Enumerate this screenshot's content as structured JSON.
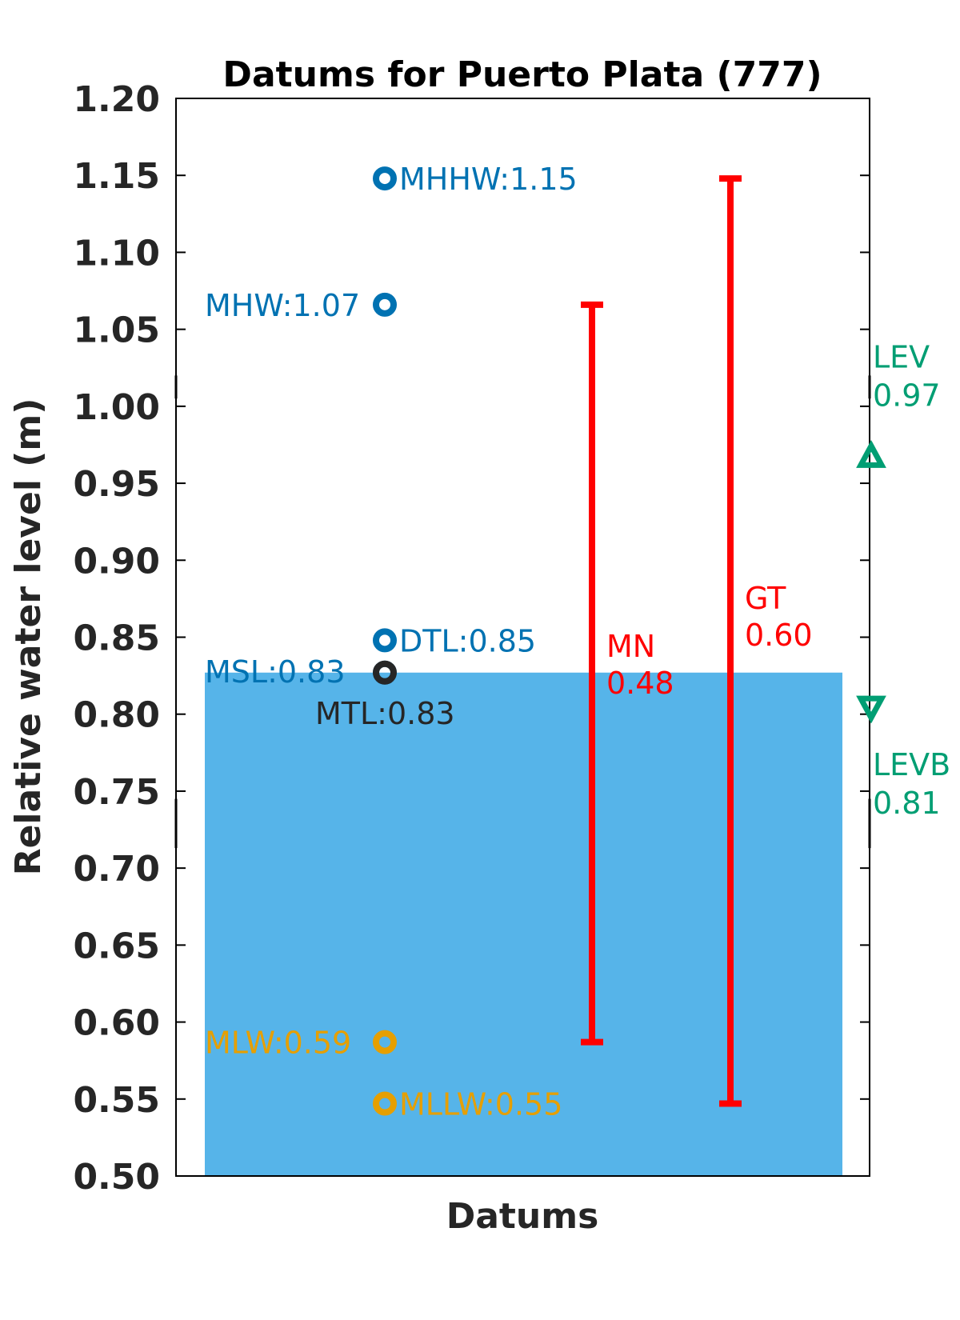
{
  "chart_data": {
    "type": "scatter",
    "title": "Datums for Puerto Plata (777)",
    "xlabel": "Datums",
    "ylabel": "Relative water level (m)",
    "ylim": [
      0.5,
      1.2
    ],
    "yticks": [
      "0.50",
      "0.55",
      "0.60",
      "0.65",
      "0.70",
      "0.75",
      "0.80",
      "0.85",
      "0.90",
      "0.95",
      "1.00",
      "1.05",
      "1.10",
      "1.15",
      "1.20"
    ],
    "grid": false,
    "background_bar": {
      "value": 0.827,
      "color": "#56B4E9"
    },
    "datums": [
      {
        "name": "MHHW",
        "label": "MHHW:1.15",
        "value": 1.148,
        "color": "#0072B2",
        "side": "right"
      },
      {
        "name": "MHW",
        "label": "MHW:1.07",
        "value": 1.066,
        "color": "#0072B2",
        "side": "left"
      },
      {
        "name": "DTL",
        "label": "DTL:0.85",
        "value": 0.848,
        "color": "#0072B2",
        "side": "right"
      },
      {
        "name": "MSL",
        "label": "MSL:0.83",
        "value": 0.827,
        "color": "#0072B2",
        "side": "left-up"
      },
      {
        "name": "MTL",
        "label": "MTL:0.83",
        "value": 0.827,
        "color": "#262626",
        "side": "below"
      },
      {
        "name": "MLW",
        "label": "MLW:0.59",
        "value": 0.587,
        "color": "#E69F00",
        "side": "left"
      },
      {
        "name": "MLLW",
        "label": "MLLW:0.55",
        "value": 0.547,
        "color": "#E69F00",
        "side": "right"
      }
    ],
    "ranges": [
      {
        "name": "MN",
        "label_name": "MN",
        "label_value": "0.48",
        "low": 0.587,
        "high": 1.066,
        "color": "#FF0000"
      },
      {
        "name": "GT",
        "label_name": "GT",
        "label_value": "0.60",
        "low": 0.547,
        "high": 1.148,
        "color": "#FF0000"
      }
    ],
    "extremes": [
      {
        "name": "LEV",
        "label_name": "LEV",
        "label_value": "0.97",
        "value": 0.967,
        "color": "#009E73",
        "marker": "triangle-up"
      },
      {
        "name": "LEVB",
        "label_name": "LEVB",
        "label_value": "0.81",
        "value": 0.805,
        "color": "#009E73",
        "marker": "triangle-down"
      }
    ]
  }
}
